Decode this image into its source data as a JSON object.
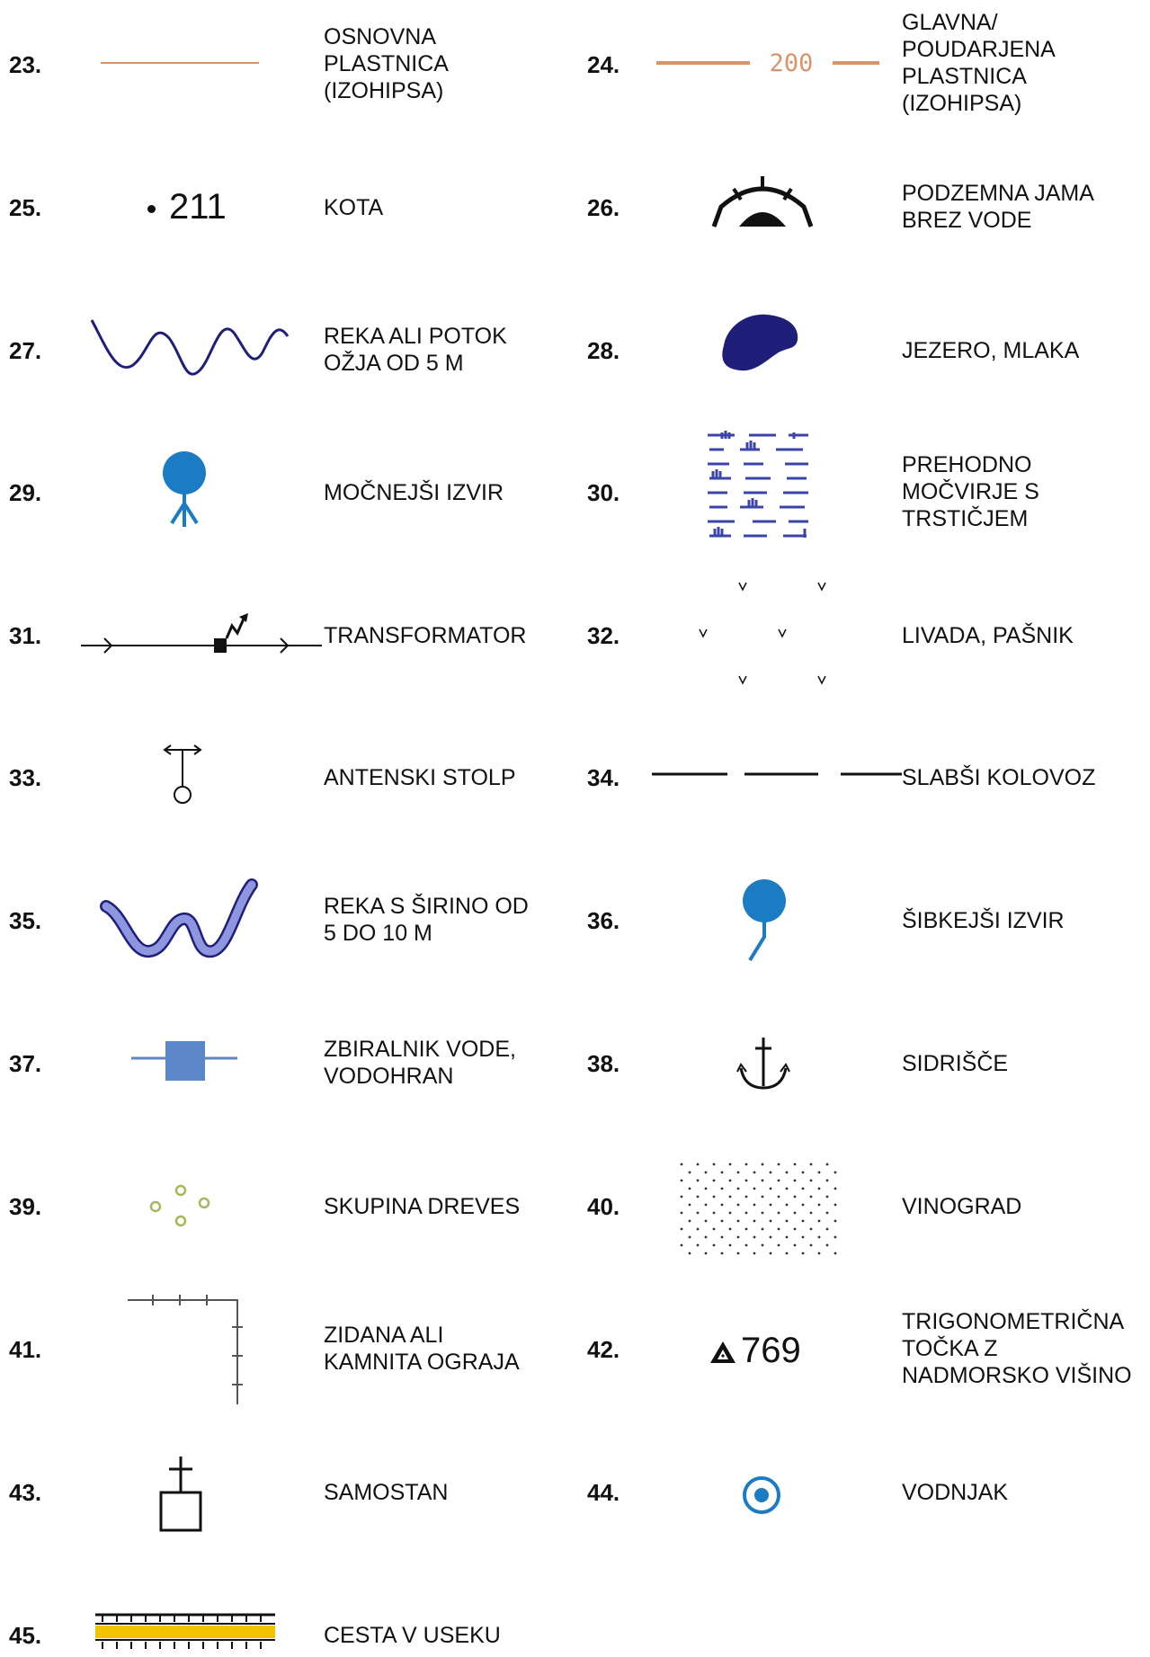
{
  "entries": [
    {
      "number": "23.",
      "label": "OSNOVNA\nPLASTNICA\n(IZOHIPSA)",
      "icon": "contour-line-icon"
    },
    {
      "number": "24.",
      "label": "GLAVNA/\nPOUDARJENA\nPLASTNICA\n(IZOHIPSA)",
      "icon": "index-contour-icon",
      "symbol_text": "200"
    },
    {
      "number": "25.",
      "label": "KOTA",
      "icon": "spot-height-icon",
      "symbol_text": "211"
    },
    {
      "number": "26.",
      "label": "PODZEMNA JAMA\nBREZ VODE",
      "icon": "dry-cave-icon"
    },
    {
      "number": "27.",
      "label": "REKA ALI POTOK\nOŽJA OD 5 M",
      "icon": "stream-icon"
    },
    {
      "number": "28.",
      "label": "JEZERO, MLAKA",
      "icon": "lake-icon"
    },
    {
      "number": "29.",
      "label": "MOČNEJŠI IZVIR",
      "icon": "strong-spring-icon"
    },
    {
      "number": "30.",
      "label": "PREHODNO\nMOČVIRJE S\nTRSTIČJEM",
      "icon": "marsh-reeds-icon"
    },
    {
      "number": "31.",
      "label": "TRANSFORMATOR",
      "icon": "transformer-icon"
    },
    {
      "number": "32.",
      "label": "LIVADA, PAŠNIK",
      "icon": "meadow-icon"
    },
    {
      "number": "33.",
      "label": "ANTENSKI STOLP",
      "icon": "antenna-tower-icon"
    },
    {
      "number": "34.",
      "label": "SLABŠI KOLOVOZ",
      "icon": "cart-track-icon"
    },
    {
      "number": "35.",
      "label": "REKA S ŠIRINO OD\n5 DO 10 M",
      "icon": "river-icon"
    },
    {
      "number": "36.",
      "label": "ŠIBKEJŠI IZVIR",
      "icon": "weak-spring-icon"
    },
    {
      "number": "37.",
      "label": "ZBIRALNIK VODE,\nVODOHRAN",
      "icon": "water-reservoir-icon"
    },
    {
      "number": "38.",
      "label": "SIDRIŠČE",
      "icon": "anchor-icon"
    },
    {
      "number": "39.",
      "label": "SKUPINA DREVES",
      "icon": "tree-group-icon"
    },
    {
      "number": "40.",
      "label": "VINOGRAD",
      "icon": "vineyard-icon"
    },
    {
      "number": "41.",
      "label": "ZIDANA ALI\nKAMNITA OGRAJA",
      "icon": "stone-wall-icon"
    },
    {
      "number": "42.",
      "label": "TRIGONOMETRIČNA\nTOČKA Z\nNADMORSKO VIŠINO",
      "icon": "trig-point-icon",
      "symbol_text": "769"
    },
    {
      "number": "43.",
      "label": "SAMOSTAN",
      "icon": "monastery-icon"
    },
    {
      "number": "44.",
      "label": "VODNJAK",
      "icon": "well-icon"
    },
    {
      "number": "45.",
      "label": "CESTA V USEKU",
      "icon": "road-cutting-icon"
    }
  ],
  "colors": {
    "contour": "#d9956a",
    "water_dark": "#1f1f7a",
    "water_blue": "#1b7cc4",
    "reservoir": "#5b86c8",
    "marsh": "#3c44a8",
    "trees": "#a8b65a",
    "road_yellow": "#f2c400"
  }
}
